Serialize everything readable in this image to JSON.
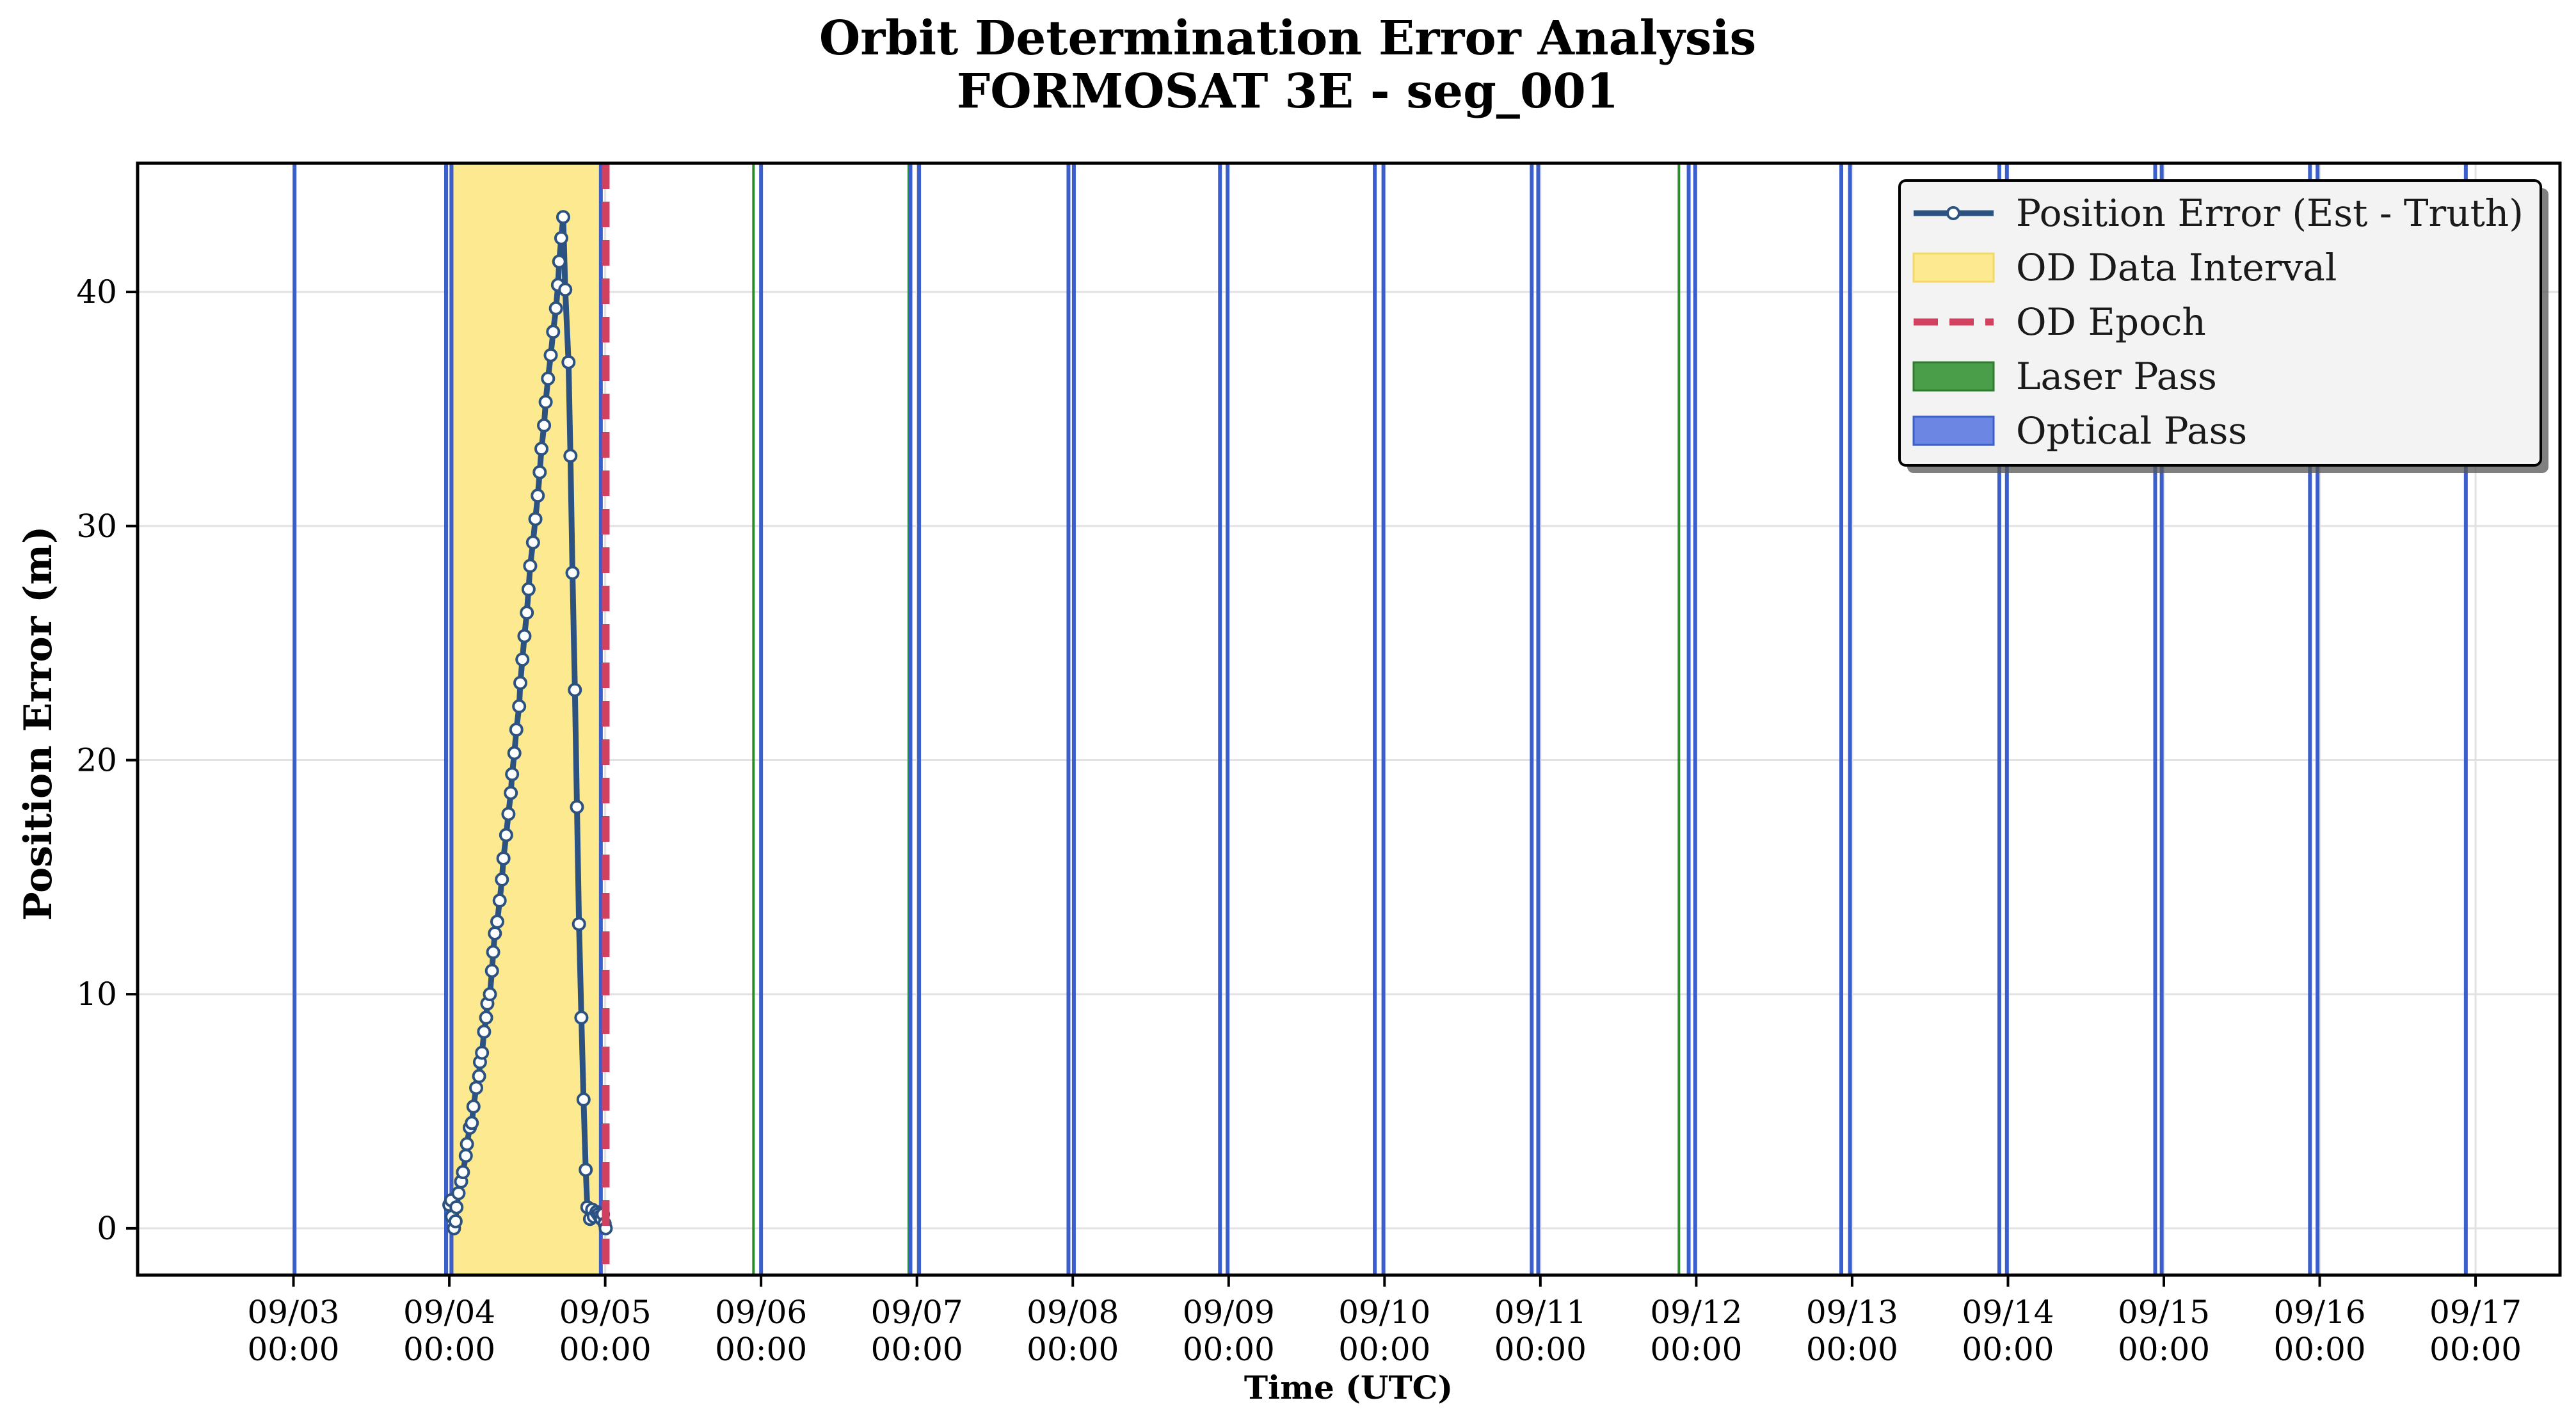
{
  "chart_data": {
    "type": "line",
    "title": "Orbit Determination Error Analysis",
    "subtitle": "FORMOSAT 3E - seg_001",
    "xlabel": "Time (UTC)",
    "ylabel": "Position Error (m)",
    "x_axis": {
      "type": "date",
      "range": [
        "2024-09-02T00:00",
        "2024-09-17T13:00"
      ],
      "ticks": [
        {
          "x": "2024-09-03T00:00",
          "label1": "09/03",
          "label2": "00:00"
        },
        {
          "x": "2024-09-04T00:00",
          "label1": "09/04",
          "label2": "00:00"
        },
        {
          "x": "2024-09-05T00:00",
          "label1": "09/05",
          "label2": "00:00"
        },
        {
          "x": "2024-09-06T00:00",
          "label1": "09/06",
          "label2": "00:00"
        },
        {
          "x": "2024-09-07T00:00",
          "label1": "09/07",
          "label2": "00:00"
        },
        {
          "x": "2024-09-08T00:00",
          "label1": "09/08",
          "label2": "00:00"
        },
        {
          "x": "2024-09-09T00:00",
          "label1": "09/09",
          "label2": "00:00"
        },
        {
          "x": "2024-09-10T00:00",
          "label1": "09/10",
          "label2": "00:00"
        },
        {
          "x": "2024-09-11T00:00",
          "label1": "09/11",
          "label2": "00:00"
        },
        {
          "x": "2024-09-12T00:00",
          "label1": "09/12",
          "label2": "00:00"
        },
        {
          "x": "2024-09-13T00:00",
          "label1": "09/13",
          "label2": "00:00"
        },
        {
          "x": "2024-09-14T00:00",
          "label1": "09/14",
          "label2": "00:00"
        },
        {
          "x": "2024-09-15T00:00",
          "label1": "09/15",
          "label2": "00:00"
        },
        {
          "x": "2024-09-16T00:00",
          "label1": "09/16",
          "label2": "00:00"
        },
        {
          "x": "2024-09-17T00:00",
          "label1": "09/17",
          "label2": "00:00"
        }
      ]
    },
    "y_axis": {
      "range": [
        -2,
        45.5
      ],
      "ticks": [
        {
          "value": 0,
          "label": "0"
        },
        {
          "value": 10,
          "label": "10"
        },
        {
          "value": 20,
          "label": "20"
        },
        {
          "value": 30,
          "label": "30"
        },
        {
          "value": 40,
          "label": "40"
        }
      ]
    },
    "grid": true,
    "legend": {
      "placement": "top-right",
      "entries": [
        {
          "label": "Position Error (Est - Truth)",
          "kind": "line-marker"
        },
        {
          "label": "OD Data Interval",
          "kind": "patch-yellow"
        },
        {
          "label": "OD Epoch",
          "kind": "dashed-red"
        },
        {
          "label": "Laser Pass",
          "kind": "patch-green"
        },
        {
          "label": "Optical Pass",
          "kind": "patch-blue"
        }
      ]
    },
    "colors": {
      "error_line": "#2c5282",
      "od_interval": "#fde98f",
      "od_epoch": "#d1405f",
      "laser": "#2e8b2e",
      "optical": "#3a5fcd"
    },
    "od_data_interval": [
      "2024-09-04T00:20",
      "2024-09-04T23:20"
    ],
    "od_epoch": "2024-09-05T00:05",
    "laser_passes": [
      "2024-09-05T22:50",
      "2024-09-06T22:45",
      "2024-09-11T21:20"
    ],
    "optical_passes": [
      "2024-09-03T00:10",
      "2024-09-03T23:30",
      "2024-09-04T00:20",
      "2024-09-04T23:20",
      "2024-09-06T00:00",
      "2024-09-06T23:00",
      "2024-09-07T00:20",
      "2024-09-07T23:20",
      "2024-09-08T00:10",
      "2024-09-08T22:40",
      "2024-09-08T23:50",
      "2024-09-09T22:30",
      "2024-09-09T23:50",
      "2024-09-10T22:40",
      "2024-09-10T23:40",
      "2024-09-11T22:50",
      "2024-09-11T23:50",
      "2024-09-12T22:20",
      "2024-09-12T23:40",
      "2024-09-13T22:40",
      "2024-09-13T23:50",
      "2024-09-14T22:40",
      "2024-09-14T23:40",
      "2024-09-15T22:30",
      "2024-09-15T23:40",
      "2024-09-16T22:30"
    ],
    "series": [
      {
        "name": "Position Error (Est - Truth)",
        "x": [
          "2024-09-04T00:00",
          "2024-09-04T00:18",
          "2024-09-04T00:24",
          "2024-09-04T00:43",
          "2024-09-04T00:58",
          "2024-09-04T01:06",
          "2024-09-04T01:25",
          "2024-09-04T01:49",
          "2024-09-04T02:06",
          "2024-09-04T02:32",
          "2024-09-04T02:43",
          "2024-09-04T03:09",
          "2024-09-04T03:28",
          "2024-09-04T03:43",
          "2024-09-04T04:08",
          "2024-09-04T04:35",
          "2024-09-04T04:43",
          "2024-09-04T05:02",
          "2024-09-04T05:21",
          "2024-09-04T05:40",
          "2024-09-04T05:51",
          "2024-09-04T06:15",
          "2024-09-04T06:34",
          "2024-09-04T06:45",
          "2024-09-04T07:01",
          "2024-09-04T07:23",
          "2024-09-04T07:45",
          "2024-09-04T08:06",
          "2024-09-04T08:20",
          "2024-09-04T08:45",
          "2024-09-04T09:06",
          "2024-09-04T09:28",
          "2024-09-04T09:40",
          "2024-09-04T10:01",
          "2024-09-04T10:19",
          "2024-09-04T10:45",
          "2024-09-04T10:56",
          "2024-09-04T11:15",
          "2024-09-04T11:34",
          "2024-09-04T11:56",
          "2024-09-04T12:12",
          "2024-09-04T12:27",
          "2024-09-04T12:53",
          "2024-09-04T13:15",
          "2024-09-04T13:37",
          "2024-09-04T13:55",
          "2024-09-04T14:11",
          "2024-09-04T14:35",
          "2024-09-04T14:50",
          "2024-09-04T15:12",
          "2024-09-04T15:37",
          "2024-09-04T15:59",
          "2024-09-04T16:25",
          "2024-09-04T16:44",
          "2024-09-04T16:55",
          "2024-09-04T17:14",
          "2024-09-04T17:32",
          "2024-09-04T17:51",
          "2024-09-04T18:21",
          "2024-09-04T18:39",
          "2024-09-04T18:58",
          "2024-09-04T19:20",
          "2024-09-04T19:39",
          "2024-09-04T19:58",
          "2024-09-04T20:20",
          "2024-09-04T20:40",
          "2024-09-04T21:00",
          "2024-09-04T21:15",
          "2024-09-04T21:40",
          "2024-09-04T22:00",
          "2024-09-04T22:15",
          "2024-09-04T22:40",
          "2024-09-04T22:55",
          "2024-09-04T23:10",
          "2024-09-04T23:25",
          "2024-09-04T23:40",
          "2024-09-04T23:55",
          "2024-09-05T00:05"
        ],
        "values": [
          1.0,
          1.2,
          0.5,
          0.0,
          0.3,
          0.9,
          1.5,
          2.0,
          2.4,
          3.1,
          3.6,
          4.3,
          4.5,
          5.2,
          6.0,
          6.5,
          7.1,
          7.5,
          8.4,
          9.0,
          9.6,
          10.0,
          11.0,
          11.8,
          12.6,
          13.1,
          14.0,
          14.9,
          15.8,
          16.8,
          17.7,
          18.6,
          19.4,
          20.3,
          21.3,
          22.3,
          23.3,
          24.3,
          25.3,
          26.3,
          27.3,
          28.3,
          29.3,
          30.3,
          31.3,
          32.3,
          33.3,
          34.3,
          35.3,
          36.3,
          37.3,
          38.3,
          39.3,
          40.3,
          41.3,
          42.3,
          43.2,
          40.1,
          37.0,
          33.0,
          28.0,
          23.0,
          18.0,
          13.0,
          9.0,
          5.5,
          2.5,
          0.9,
          0.4,
          0.8,
          0.5,
          0.7,
          0.6,
          0.5,
          0.4,
          0.6,
          0.2,
          0.0
        ]
      }
    ]
  }
}
